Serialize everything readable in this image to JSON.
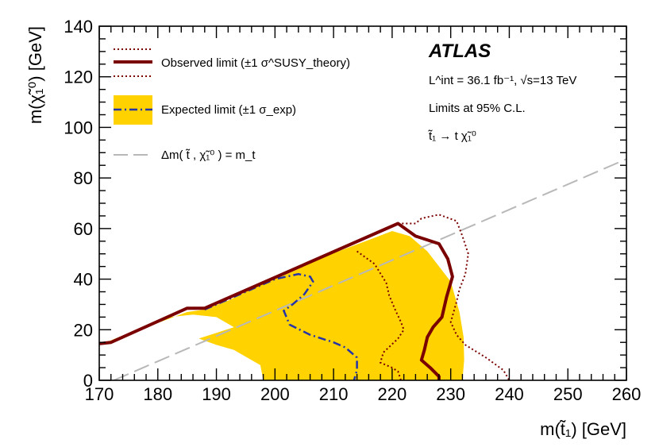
{
  "chart_data": {
    "type": "line",
    "xlabel": "m(t̃₁) [GeV]",
    "ylabel": "m(χ̃₁⁰) [GeV]",
    "xlim": [
      170,
      260
    ],
    "ylim": [
      0,
      140
    ],
    "xticks": [
      "170",
      "180",
      "190",
      "200",
      "210",
      "220",
      "230",
      "240",
      "250",
      "260"
    ],
    "yticks": [
      "0",
      "20",
      "40",
      "60",
      "80",
      "100",
      "120",
      "140"
    ],
    "grid": false,
    "legend_position": "top-left",
    "experiment": "ATLAS",
    "annotations": {
      "lumi": "L^int = 36.1 fb⁻¹, √s=13 TeV",
      "confidence": "Limits at 95% C.L.",
      "process": "t̃₁ → t χ̃₁⁰"
    },
    "legend": {
      "observed": "Observed limit (±1 σ^SUSY_theory)",
      "expected": "Expected limit (±1 σ_exp)",
      "kinematic": "Δm( t̃ , χ̃₁⁰ ) = m_t"
    },
    "colors": {
      "observed": "#7a0000",
      "expected": "#2535a8",
      "band": "#ffd200",
      "kinematic": "#b8b8b8"
    },
    "series": [
      {
        "key": "expected_band",
        "style": "band",
        "points": [
          [
            170,
            14
          ],
          [
            185,
            27
          ],
          [
            188,
            28
          ],
          [
            192,
            31.5
          ],
          [
            196,
            36
          ],
          [
            200,
            40
          ],
          [
            204,
            44
          ],
          [
            208,
            48.5
          ],
          [
            212,
            52
          ],
          [
            216,
            55.5
          ],
          [
            220,
            59
          ],
          [
            223,
            57
          ],
          [
            226,
            51
          ],
          [
            230,
            39
          ],
          [
            231.5,
            27
          ],
          [
            232.2,
            17
          ],
          [
            232.3,
            8
          ],
          [
            232,
            0
          ],
          [
            198,
            0
          ],
          [
            197.5,
            6
          ],
          [
            193,
            12
          ],
          [
            190,
            14
          ],
          [
            187,
            16.5
          ],
          [
            193,
            21
          ],
          [
            190,
            25
          ],
          [
            186,
            26
          ],
          [
            182,
            25
          ],
          [
            170,
            14
          ]
        ]
      },
      {
        "key": "expected",
        "style": "dashdot",
        "points": [
          [
            188,
            28
          ],
          [
            192,
            32
          ],
          [
            196,
            36
          ],
          [
            200,
            40
          ],
          [
            204,
            42
          ],
          [
            206,
            41
          ],
          [
            206.5,
            39
          ],
          [
            205,
            34
          ],
          [
            203,
            30
          ],
          [
            201.5,
            27.5
          ],
          [
            202.5,
            22
          ],
          [
            206,
            18
          ],
          [
            210,
            15
          ],
          [
            212,
            13
          ],
          [
            214,
            9
          ],
          [
            214,
            4
          ],
          [
            213.5,
            0
          ]
        ]
      },
      {
        "key": "observed",
        "style": "solid",
        "points": [
          [
            170,
            14.5
          ],
          [
            172,
            15
          ],
          [
            185,
            28.5
          ],
          [
            188,
            28.5
          ],
          [
            221,
            62
          ],
          [
            224,
            57
          ],
          [
            228,
            54
          ],
          [
            229.5,
            48
          ],
          [
            230.3,
            41
          ],
          [
            229.3,
            33
          ],
          [
            228.5,
            25
          ],
          [
            227,
            21
          ],
          [
            226,
            17
          ],
          [
            225.5,
            12
          ],
          [
            225,
            8
          ],
          [
            226.5,
            5
          ],
          [
            228,
            1.5
          ],
          [
            228,
            0
          ]
        ]
      },
      {
        "key": "observed_plus",
        "style": "dotted",
        "points": [
          [
            221,
            62
          ],
          [
            224,
            62
          ],
          [
            225,
            64
          ],
          [
            228,
            65.5
          ],
          [
            231,
            63
          ],
          [
            232,
            57
          ],
          [
            233,
            50
          ],
          [
            232.5,
            42
          ],
          [
            231.5,
            36
          ],
          [
            231,
            31
          ],
          [
            230,
            23
          ],
          [
            231,
            18
          ],
          [
            232.5,
            14
          ],
          [
            236,
            9
          ],
          [
            239,
            4
          ],
          [
            240,
            0
          ]
        ]
      },
      {
        "key": "observed_minus",
        "style": "dotted",
        "points": [
          [
            214,
            51
          ],
          [
            217,
            46
          ],
          [
            219,
            38.5
          ],
          [
            219.5,
            33.5
          ],
          [
            220.5,
            28
          ],
          [
            221.5,
            23
          ],
          [
            222,
            20
          ],
          [
            221,
            16.5
          ],
          [
            218.5,
            11
          ],
          [
            218,
            7
          ],
          [
            220,
            5
          ],
          [
            221,
            3.5
          ],
          [
            221.5,
            0
          ]
        ]
      },
      {
        "key": "kinematic",
        "style": "dashed",
        "points": [
          [
            172.5,
            0
          ],
          [
            260,
            87.5
          ]
        ]
      }
    ]
  }
}
